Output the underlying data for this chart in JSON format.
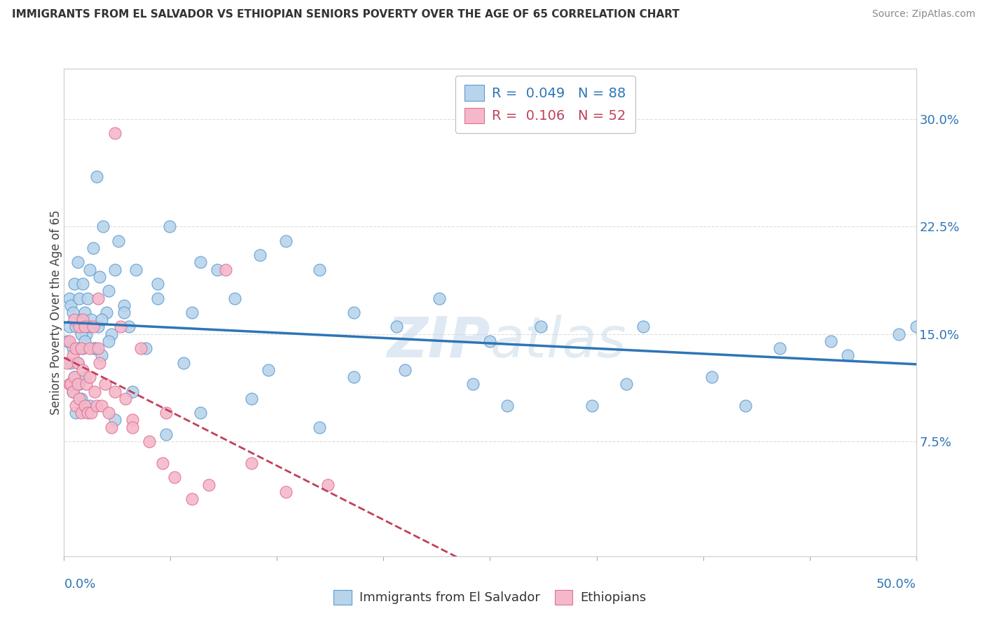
{
  "title": "IMMIGRANTS FROM EL SALVADOR VS ETHIOPIAN SENIORS POVERTY OVER THE AGE OF 65 CORRELATION CHART",
  "source": "Source: ZipAtlas.com",
  "ylabel": "Seniors Poverty Over the Age of 65",
  "xlim": [
    0,
    0.5
  ],
  "ylim": [
    -0.005,
    0.335
  ],
  "yticks": [
    0.075,
    0.15,
    0.225,
    0.3
  ],
  "ytick_labels": [
    "7.5%",
    "15.0%",
    "22.5%",
    "30.0%"
  ],
  "r_blue": 0.049,
  "n_blue": 88,
  "r_pink": 0.106,
  "n_pink": 52,
  "legend_blue": "Immigrants from El Salvador",
  "legend_pink": "Ethiopians",
  "blue_color": "#b8d4ea",
  "blue_edge_color": "#5b9bd5",
  "blue_line_color": "#2e75b6",
  "pink_color": "#f4b8ca",
  "pink_edge_color": "#e07090",
  "pink_line_color": "#c0405a",
  "axis_label_color": "#2e75b6",
  "watermark_color": "#c8d8ea",
  "blue_x": [
    0.002,
    0.003,
    0.003,
    0.004,
    0.004,
    0.005,
    0.005,
    0.005,
    0.006,
    0.006,
    0.007,
    0.007,
    0.008,
    0.008,
    0.009,
    0.009,
    0.01,
    0.01,
    0.011,
    0.011,
    0.012,
    0.012,
    0.013,
    0.014,
    0.015,
    0.015,
    0.016,
    0.017,
    0.018,
    0.019,
    0.02,
    0.021,
    0.022,
    0.023,
    0.025,
    0.026,
    0.028,
    0.03,
    0.032,
    0.035,
    0.038,
    0.042,
    0.048,
    0.055,
    0.062,
    0.07,
    0.08,
    0.09,
    0.1,
    0.115,
    0.13,
    0.15,
    0.17,
    0.195,
    0.22,
    0.25,
    0.28,
    0.31,
    0.34,
    0.38,
    0.42,
    0.46,
    0.5,
    0.008,
    0.01,
    0.012,
    0.015,
    0.018,
    0.022,
    0.026,
    0.03,
    0.04,
    0.06,
    0.08,
    0.11,
    0.15,
    0.2,
    0.26,
    0.33,
    0.4,
    0.45,
    0.49,
    0.035,
    0.055,
    0.075,
    0.12,
    0.17,
    0.24
  ],
  "blue_y": [
    0.145,
    0.155,
    0.175,
    0.13,
    0.17,
    0.11,
    0.14,
    0.165,
    0.12,
    0.185,
    0.095,
    0.155,
    0.13,
    0.2,
    0.115,
    0.175,
    0.105,
    0.16,
    0.14,
    0.185,
    0.12,
    0.165,
    0.15,
    0.175,
    0.1,
    0.195,
    0.16,
    0.21,
    0.14,
    0.26,
    0.155,
    0.19,
    0.135,
    0.225,
    0.165,
    0.18,
    0.15,
    0.195,
    0.215,
    0.17,
    0.155,
    0.195,
    0.14,
    0.185,
    0.225,
    0.13,
    0.2,
    0.195,
    0.175,
    0.205,
    0.215,
    0.195,
    0.165,
    0.155,
    0.175,
    0.145,
    0.155,
    0.1,
    0.155,
    0.12,
    0.14,
    0.135,
    0.155,
    0.14,
    0.15,
    0.145,
    0.155,
    0.14,
    0.16,
    0.145,
    0.09,
    0.11,
    0.08,
    0.095,
    0.105,
    0.085,
    0.125,
    0.1,
    0.115,
    0.1,
    0.145,
    0.15,
    0.165,
    0.175,
    0.165,
    0.125,
    0.12,
    0.115
  ],
  "pink_x": [
    0.002,
    0.003,
    0.003,
    0.004,
    0.005,
    0.005,
    0.006,
    0.006,
    0.007,
    0.007,
    0.008,
    0.008,
    0.009,
    0.009,
    0.01,
    0.01,
    0.011,
    0.011,
    0.012,
    0.012,
    0.013,
    0.014,
    0.015,
    0.015,
    0.016,
    0.017,
    0.018,
    0.019,
    0.02,
    0.021,
    0.022,
    0.024,
    0.026,
    0.028,
    0.03,
    0.033,
    0.036,
    0.04,
    0.045,
    0.05,
    0.058,
    0.065,
    0.075,
    0.085,
    0.095,
    0.11,
    0.13,
    0.155,
    0.02,
    0.03,
    0.04,
    0.06
  ],
  "pink_y": [
    0.13,
    0.115,
    0.145,
    0.115,
    0.11,
    0.135,
    0.12,
    0.16,
    0.1,
    0.14,
    0.115,
    0.13,
    0.105,
    0.155,
    0.095,
    0.14,
    0.125,
    0.16,
    0.1,
    0.155,
    0.115,
    0.095,
    0.14,
    0.12,
    0.095,
    0.155,
    0.11,
    0.1,
    0.14,
    0.13,
    0.1,
    0.115,
    0.095,
    0.085,
    0.29,
    0.155,
    0.105,
    0.09,
    0.14,
    0.075,
    0.06,
    0.05,
    0.035,
    0.045,
    0.195,
    0.06,
    0.04,
    0.045,
    0.175,
    0.11,
    0.085,
    0.095
  ]
}
